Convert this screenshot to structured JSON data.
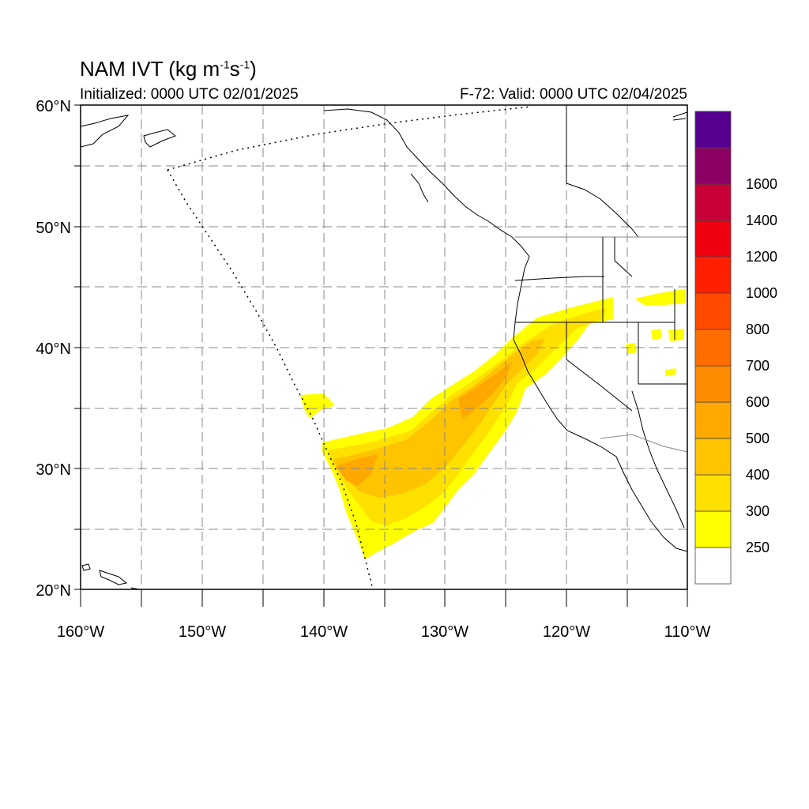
{
  "title": {
    "text": "NAM IVT (kg m",
    "unit_m_exp": "-1",
    "unit_s": "s",
    "unit_s_exp": "-1",
    "close": ")"
  },
  "initialized": "Initialized: 0000 UTC 02/01/2025",
  "valid": "F-72: Valid: 0000 UTC 02/04/2025",
  "lat_labels": [
    "60°N",
    "50°N",
    "40°N",
    "30°N",
    "20°N"
  ],
  "lon_labels": [
    "160°W",
    "150°W",
    "140°W",
    "130°W",
    "120°W",
    "110°W"
  ],
  "colorbar": {
    "labels": [
      "250",
      "300",
      "400",
      "500",
      "600",
      "700",
      "800",
      "1000",
      "1200",
      "1400",
      "1600"
    ],
    "colors": [
      "#ffffff",
      "#ffff00",
      "#ffe100",
      "#ffc400",
      "#ffa800",
      "#ff8b00",
      "#ff6d00",
      "#ff4a00",
      "#ff2000",
      "#ee0010",
      "#c80038",
      "#8c0064",
      "#570090"
    ]
  }
}
